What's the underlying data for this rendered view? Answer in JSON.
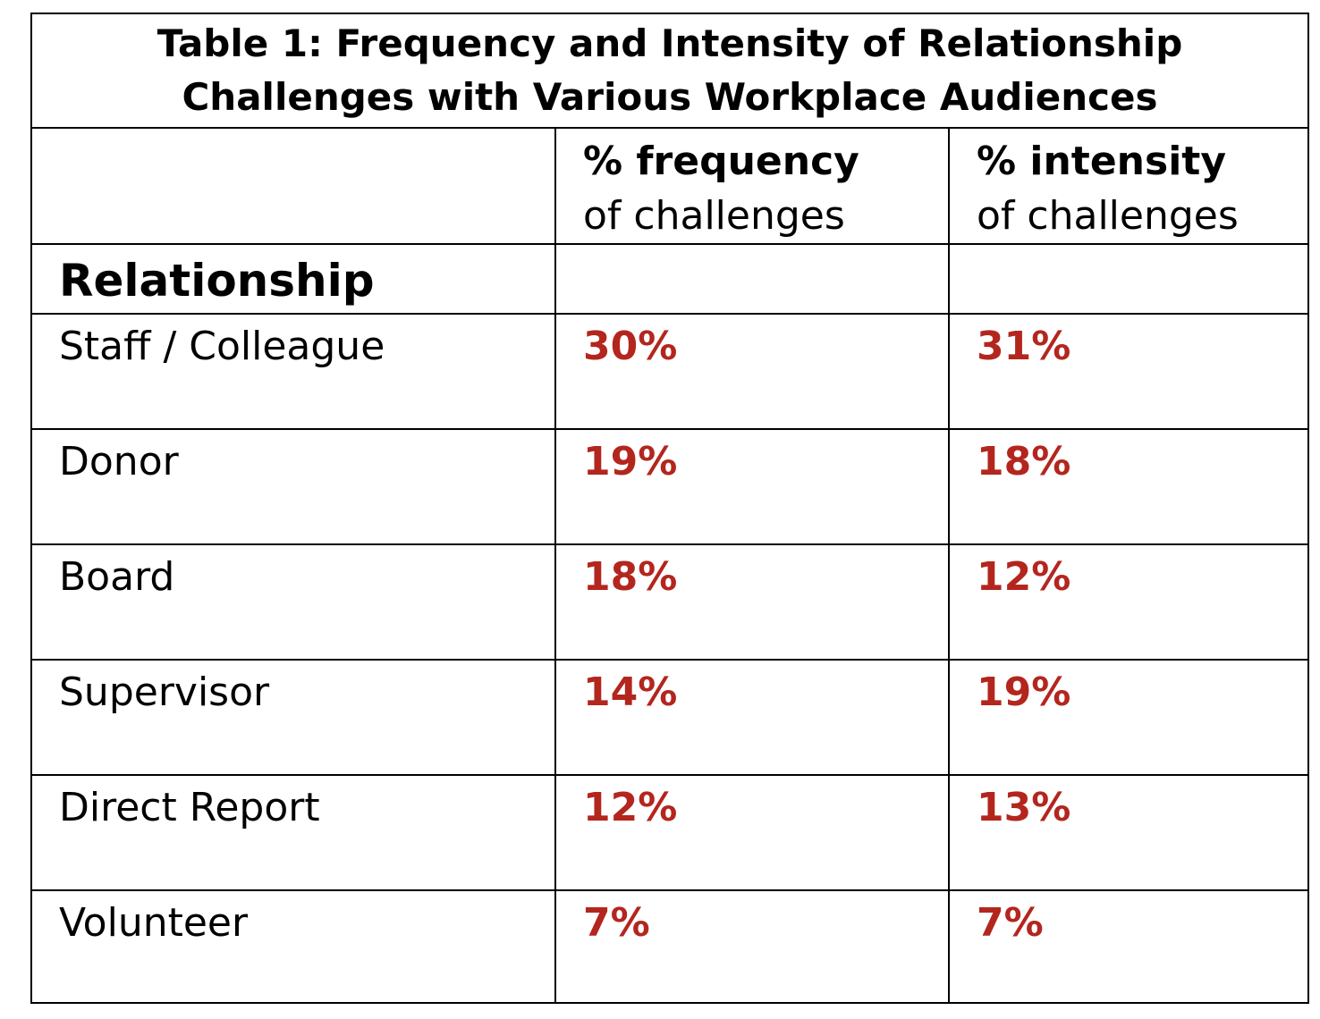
{
  "colors": {
    "value_text": "#b3261e",
    "border": "#000000",
    "text": "#000000"
  },
  "chart_data": {
    "type": "table",
    "title": "Table 1:  Frequency and Intensity of Relationship Challenges with Various Workplace Audiences",
    "title_lines": [
      "Table 1:  Frequency and Intensity of Relationship",
      "Challenges with Various Workplace Audiences"
    ],
    "columns": [
      {
        "strong": "",
        "plain": ""
      },
      {
        "strong": "% frequency",
        "plain": "of challenges"
      },
      {
        "strong": "% intensity",
        "plain": "of challenges"
      }
    ],
    "section_label": "Relationship",
    "rows": [
      {
        "relationship": "Staff / Colleague",
        "frequency": "30%",
        "intensity": "31%"
      },
      {
        "relationship": "Donor",
        "frequency": "19%",
        "intensity": "18%"
      },
      {
        "relationship": "Board",
        "frequency": "18%",
        "intensity": "12%"
      },
      {
        "relationship": "Supervisor",
        "frequency": "14%",
        "intensity": "19%"
      },
      {
        "relationship": "Direct Report",
        "frequency": "12%",
        "intensity": "13%"
      },
      {
        "relationship": "Volunteer",
        "frequency": "7%",
        "intensity": "7%"
      }
    ]
  }
}
